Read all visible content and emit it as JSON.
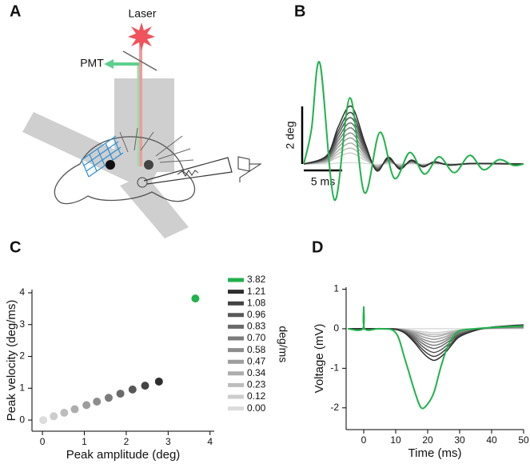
{
  "diagram": {
    "panel": "A",
    "labels": [
      "Laser",
      "PMT"
    ]
  },
  "chart_data": [
    {
      "panel": "B",
      "type": "line",
      "x": [
        0,
        3,
        4.5,
        6.2,
        8,
        9.5,
        11,
        12.5,
        14,
        15.5,
        17,
        19,
        22,
        28.6
      ],
      "xlim": [
        0,
        28.6
      ],
      "ylim": [
        -1.4,
        3.6
      ],
      "scale_bars": {
        "y": {
          "value": 2,
          "label": "2 deg"
        },
        "x": {
          "value": 5,
          "label": "5 ms"
        }
      },
      "series": [
        {
          "color": "#dcdcdc",
          "values": [
            0,
            0.01,
            0.03,
            0.05,
            0.02,
            -0.01,
            0.01,
            0,
            0,
            0,
            0,
            0,
            0,
            0
          ]
        },
        {
          "color": "#cdcdcd",
          "values": [
            0,
            0.06,
            0.25,
            0.38,
            0.13,
            -0.05,
            0.05,
            -0.03,
            0.03,
            -0.02,
            0.02,
            -0.01,
            0,
            0
          ]
        },
        {
          "color": "#bdbdbd",
          "values": [
            0,
            0.08,
            0.36,
            0.55,
            0.19,
            -0.07,
            0.07,
            -0.05,
            0.04,
            -0.03,
            0.02,
            -0.01,
            0.01,
            0
          ]
        },
        {
          "color": "#adadad",
          "values": [
            0,
            0.11,
            0.47,
            0.72,
            0.25,
            -0.09,
            0.09,
            -0.06,
            0.05,
            -0.04,
            0.03,
            -0.01,
            0.01,
            0
          ]
        },
        {
          "color": "#9d9d9d",
          "values": [
            0,
            0.14,
            0.59,
            0.9,
            0.32,
            -0.11,
            0.11,
            -0.08,
            0.06,
            -0.05,
            0.04,
            -0.02,
            0.01,
            0
          ]
        },
        {
          "color": "#8d8d8d",
          "values": [
            0,
            0.16,
            0.7,
            1.07,
            0.37,
            -0.13,
            0.13,
            -0.1,
            0.07,
            -0.05,
            0.04,
            -0.02,
            0.01,
            0
          ]
        },
        {
          "color": "#7c7c7c",
          "values": [
            0,
            0.19,
            0.81,
            1.25,
            0.44,
            -0.15,
            0.15,
            -0.11,
            0.09,
            -0.06,
            0.05,
            -0.03,
            0.01,
            0
          ]
        },
        {
          "color": "#6a6a6a",
          "values": [
            0,
            0.21,
            0.92,
            1.42,
            0.5,
            -0.17,
            0.17,
            -0.13,
            0.1,
            -0.07,
            0.06,
            -0.03,
            0.01,
            0
          ]
        },
        {
          "color": "#575757",
          "values": [
            0,
            0.24,
            1.04,
            1.6,
            0.56,
            -0.19,
            0.19,
            -0.14,
            0.11,
            -0.08,
            0.06,
            -0.03,
            0.02,
            0
          ]
        },
        {
          "color": "#434343",
          "values": [
            0,
            0.27,
            1.16,
            1.78,
            0.62,
            -0.21,
            0.21,
            -0.16,
            0.12,
            -0.09,
            0.07,
            -0.04,
            0.02,
            0
          ]
        },
        {
          "color": "#2e2e2e",
          "values": [
            0,
            0.3,
            1.3,
            2,
            0.7,
            -0.24,
            0.24,
            -0.18,
            0.14,
            -0.1,
            0.08,
            -0.04,
            0.02,
            0
          ]
        },
        {
          "color": "#21b24b",
          "x": [
            0,
            1,
            2.1,
            4.0,
            6.0,
            7.9,
            9.9,
            11.8,
            13.8,
            15.7,
            17.6,
            19.6,
            21.6,
            23.4,
            25.4,
            27.3,
            28.6
          ],
          "values": [
            0,
            1.2,
            3.5,
            -1.25,
            2.3,
            -1.0,
            1.1,
            -0.5,
            0.4,
            -0.35,
            0.25,
            -0.3,
            0.3,
            -0.2,
            0.15,
            -0.05,
            0
          ]
        }
      ]
    },
    {
      "panel": "C",
      "type": "scatter",
      "xlabel": "Peak amplitude (deg)",
      "ylabel": "Peak velocity (deg/ms)",
      "legend_title": "deg/ms",
      "xlim": [
        -0.25,
        4.1
      ],
      "ylim": [
        -0.35,
        4.1
      ],
      "xticks": [
        0,
        1,
        2,
        3,
        4
      ],
      "yticks": [
        0,
        1,
        2,
        3,
        4
      ],
      "series": [
        {
          "name": "3.82",
          "color": "#21b24b",
          "x": [
            3.65
          ],
          "values": [
            3.82
          ]
        },
        {
          "name": "1.21",
          "color": "#2e2e2e",
          "x": [
            2.78
          ],
          "values": [
            1.21
          ]
        },
        {
          "name": "1.08",
          "color": "#434343",
          "x": [
            2.45
          ],
          "values": [
            1.08
          ]
        },
        {
          "name": "0.96",
          "color": "#575757",
          "x": [
            2.15
          ],
          "values": [
            0.96
          ]
        },
        {
          "name": "0.83",
          "color": "#6a6a6a",
          "x": [
            1.86
          ],
          "values": [
            0.83
          ]
        },
        {
          "name": "0.70",
          "color": "#7c7c7c",
          "x": [
            1.58
          ],
          "values": [
            0.7
          ]
        },
        {
          "name": "0.58",
          "color": "#8d8d8d",
          "x": [
            1.3
          ],
          "values": [
            0.58
          ]
        },
        {
          "name": "0.47",
          "color": "#9d9d9d",
          "x": [
            1.05
          ],
          "values": [
            0.47
          ]
        },
        {
          "name": "0.34",
          "color": "#adadad",
          "x": [
            0.77
          ],
          "values": [
            0.34
          ]
        },
        {
          "name": "0.23",
          "color": "#bdbdbd",
          "x": [
            0.52
          ],
          "values": [
            0.23
          ]
        },
        {
          "name": "0.12",
          "color": "#cdcdcd",
          "x": [
            0.27
          ],
          "values": [
            0.12
          ]
        },
        {
          "name": "0.00",
          "color": "#dcdcdc",
          "x": [
            0.02
          ],
          "values": [
            0
          ]
        }
      ]
    },
    {
      "panel": "D",
      "type": "line",
      "xlabel": "Time (ms)",
      "ylabel": "Voltage (mV)",
      "x": [
        -5,
        -0.3,
        0,
        0.3,
        5,
        10,
        13,
        16,
        18,
        20,
        22,
        24,
        26,
        28,
        30,
        35,
        40,
        50
      ],
      "xlim": [
        -5.5,
        50
      ],
      "ylim": [
        -2.55,
        1.05
      ],
      "xticks": [
        0,
        10,
        20,
        30,
        40,
        50
      ],
      "yticks": [
        -2,
        -1,
        0,
        1
      ],
      "series": [
        {
          "color": "#dcdcdc",
          "values": [
            0,
            0,
            0,
            0,
            0,
            0,
            0,
            0,
            0,
            0,
            0,
            0,
            0,
            0,
            0,
            0,
            0,
            0
          ]
        },
        {
          "color": "#cdcdcd",
          "values": [
            0,
            0,
            0,
            0,
            0,
            0,
            -0.02,
            -0.05,
            -0.07,
            -0.09,
            -0.1,
            -0.09,
            -0.07,
            -0.05,
            -0.03,
            -0.01,
            0.01,
            0.01
          ]
        },
        {
          "color": "#bdbdbd",
          "values": [
            0,
            0,
            0,
            0,
            0,
            0,
            -0.02,
            -0.07,
            -0.11,
            -0.14,
            -0.15,
            -0.14,
            -0.11,
            -0.07,
            -0.04,
            -0.01,
            0.01,
            0.02
          ]
        },
        {
          "color": "#adadad",
          "values": [
            0,
            0,
            0,
            0,
            0,
            0,
            -0.03,
            -0.09,
            -0.14,
            -0.18,
            -0.2,
            -0.18,
            -0.14,
            -0.09,
            -0.05,
            -0.01,
            0.01,
            0.02
          ]
        },
        {
          "color": "#9d9d9d",
          "values": [
            0,
            0,
            0,
            0,
            0,
            -0.01,
            -0.04,
            -0.12,
            -0.19,
            -0.24,
            -0.27,
            -0.24,
            -0.19,
            -0.12,
            -0.07,
            -0.01,
            0.01,
            0.03
          ]
        },
        {
          "color": "#8d8d8d",
          "values": [
            0,
            0,
            0,
            0,
            0,
            -0.01,
            -0.05,
            -0.15,
            -0.24,
            -0.31,
            -0.34,
            -0.31,
            -0.24,
            -0.15,
            -0.09,
            -0.02,
            0.02,
            0.04
          ]
        },
        {
          "color": "#7c7c7c",
          "values": [
            0,
            0,
            0,
            0,
            0,
            -0.01,
            -0.06,
            -0.19,
            -0.29,
            -0.38,
            -0.42,
            -0.38,
            -0.29,
            -0.19,
            -0.11,
            -0.02,
            0.02,
            0.05
          ]
        },
        {
          "color": "#6a6a6a",
          "values": [
            0,
            0,
            0,
            0,
            0,
            -0.01,
            -0.08,
            -0.23,
            -0.35,
            -0.45,
            -0.5,
            -0.45,
            -0.35,
            -0.23,
            -0.13,
            -0.03,
            0.03,
            0.06
          ]
        },
        {
          "color": "#575757",
          "values": [
            0,
            0,
            0,
            0,
            0,
            -0.01,
            -0.09,
            -0.27,
            -0.42,
            -0.54,
            -0.6,
            -0.54,
            -0.42,
            -0.27,
            -0.15,
            -0.03,
            0.03,
            0.07
          ]
        },
        {
          "color": "#434343",
          "values": [
            0,
            0,
            0,
            0,
            0,
            -0.01,
            -0.11,
            -0.32,
            -0.49,
            -0.63,
            -0.7,
            -0.63,
            -0.49,
            -0.32,
            -0.18,
            -0.04,
            0.04,
            0.08
          ]
        },
        {
          "color": "#2e2e2e",
          "values": [
            0,
            0,
            0,
            0,
            0,
            -0.02,
            -0.12,
            -0.36,
            -0.56,
            -0.72,
            -0.8,
            -0.72,
            -0.56,
            -0.36,
            -0.2,
            -0.04,
            0.04,
            0.1
          ]
        },
        {
          "color": "#21b24b",
          "values": [
            0,
            0,
            0.55,
            0,
            0,
            -0.1,
            -0.8,
            -1.6,
            -2.0,
            -1.9,
            -1.6,
            -1.0,
            -0.5,
            -0.2,
            -0.05,
            0,
            0.03,
            0.07
          ]
        }
      ]
    }
  ]
}
